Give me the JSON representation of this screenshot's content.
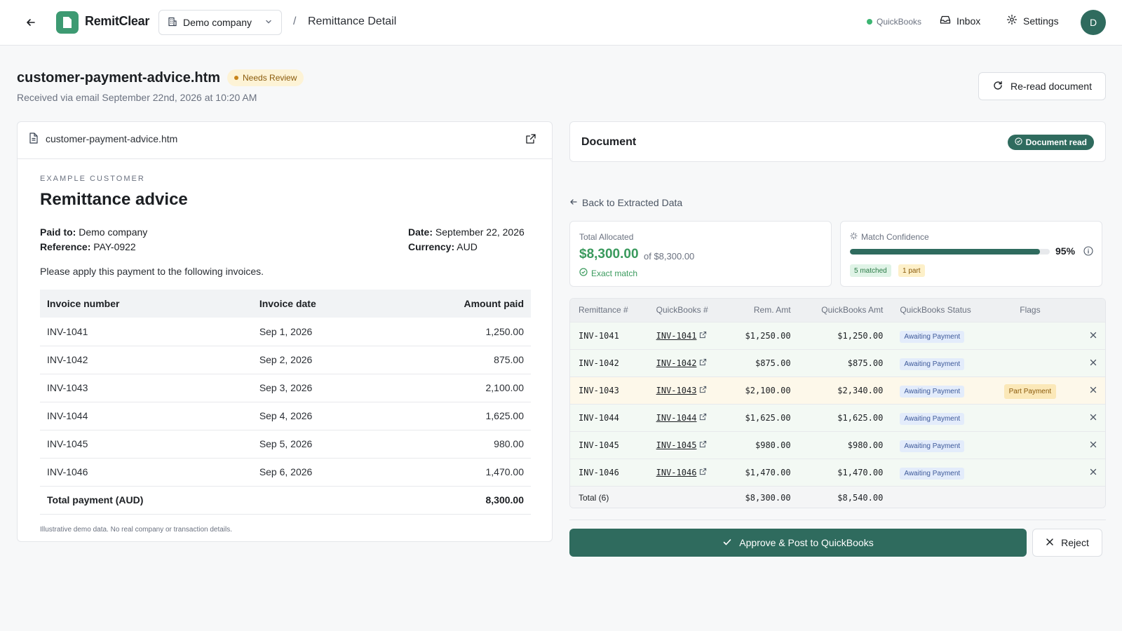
{
  "header": {
    "app_name": "RemitClear",
    "company": "Demo company",
    "separator": "/",
    "page": "Remittance Detail",
    "integration_status": "QuickBooks",
    "inbox_label": "Inbox",
    "settings_label": "Settings",
    "avatar_initial": "D",
    "colors": {
      "brand": "#3d9a72",
      "integration_ok": "#3cb572",
      "avatar": "#2f6b5e"
    }
  },
  "page": {
    "title": "customer-payment-advice.htm",
    "status": "Needs Review",
    "subtitle": "Received via email September 22nd, 2026 at 10:20 AM",
    "reread_label": "Re-read document"
  },
  "document_preview": {
    "file_name": "customer-payment-advice.htm",
    "kicker": "EXAMPLE CUSTOMER",
    "heading": "Remittance advice",
    "paid_to_label": "Paid to:",
    "paid_to_value": "Demo company",
    "reference_label": "Reference:",
    "reference_value": "PAY-0922",
    "date_label": "Date:",
    "date_value": "September 22, 2026",
    "currency_label": "Currency:",
    "currency_value": "AUD",
    "instruction": "Please apply this payment to the following invoices.",
    "columns": [
      "Invoice number",
      "Invoice date",
      "Amount paid"
    ],
    "rows": [
      {
        "invoice": "INV-1041",
        "date": "Sep 1, 2026",
        "amount": "1,250.00"
      },
      {
        "invoice": "INV-1042",
        "date": "Sep 2, 2026",
        "amount": "875.00"
      },
      {
        "invoice": "INV-1043",
        "date": "Sep 3, 2026",
        "amount": "2,100.00"
      },
      {
        "invoice": "INV-1044",
        "date": "Sep 4, 2026",
        "amount": "1,625.00"
      },
      {
        "invoice": "INV-1045",
        "date": "Sep 5, 2026",
        "amount": "980.00"
      },
      {
        "invoice": "INV-1046",
        "date": "Sep 6, 2026",
        "amount": "1,470.00"
      }
    ],
    "total_label": "Total payment (AUD)",
    "total_value": "8,300.00",
    "footnote": "Illustrative demo data. No real company or transaction details."
  },
  "review": {
    "card_title": "Document",
    "card_badge": "Document read",
    "back_link": "Back to Extracted Data",
    "allocated": {
      "label": "Total Allocated",
      "amount": "$8,300.00",
      "of_text": "of $8,300.00",
      "match_text": "Exact match"
    },
    "confidence": {
      "label": "Match Confidence",
      "percent_value": 95,
      "percent_text": "95%",
      "matched_chip": "5 matched",
      "part_chip": "1 part"
    },
    "columns": [
      "Remittance #",
      "QuickBooks #",
      "Rem. Amt",
      "QuickBooks Amt",
      "QuickBooks Status",
      "Flags"
    ],
    "rows": [
      {
        "remittance": "INV-1041",
        "qb": "INV-1041",
        "rem_amt": "$1,250.00",
        "qb_amt": "$1,250.00",
        "status": "Awaiting Payment",
        "flag": ""
      },
      {
        "remittance": "INV-1042",
        "qb": "INV-1042",
        "rem_amt": "$875.00",
        "qb_amt": "$875.00",
        "status": "Awaiting Payment",
        "flag": ""
      },
      {
        "remittance": "INV-1043",
        "qb": "INV-1043",
        "rem_amt": "$2,100.00",
        "qb_amt": "$2,340.00",
        "status": "Awaiting Payment",
        "flag": "Part Payment"
      },
      {
        "remittance": "INV-1044",
        "qb": "INV-1044",
        "rem_amt": "$1,625.00",
        "qb_amt": "$1,625.00",
        "status": "Awaiting Payment",
        "flag": ""
      },
      {
        "remittance": "INV-1045",
        "qb": "INV-1045",
        "rem_amt": "$980.00",
        "qb_amt": "$980.00",
        "status": "Awaiting Payment",
        "flag": ""
      },
      {
        "remittance": "INV-1046",
        "qb": "INV-1046",
        "rem_amt": "$1,470.00",
        "qb_amt": "$1,470.00",
        "status": "Awaiting Payment",
        "flag": ""
      }
    ],
    "total_label": "Total (6)",
    "total_rem": "$8,300.00",
    "total_qb": "$8,540.00",
    "approve_label": "Approve & Post to QuickBooks",
    "reject_label": "Reject",
    "colors": {
      "primary": "#2f6b5e",
      "positive": "#3a9a5d",
      "warning": "#fbe8b8"
    }
  }
}
